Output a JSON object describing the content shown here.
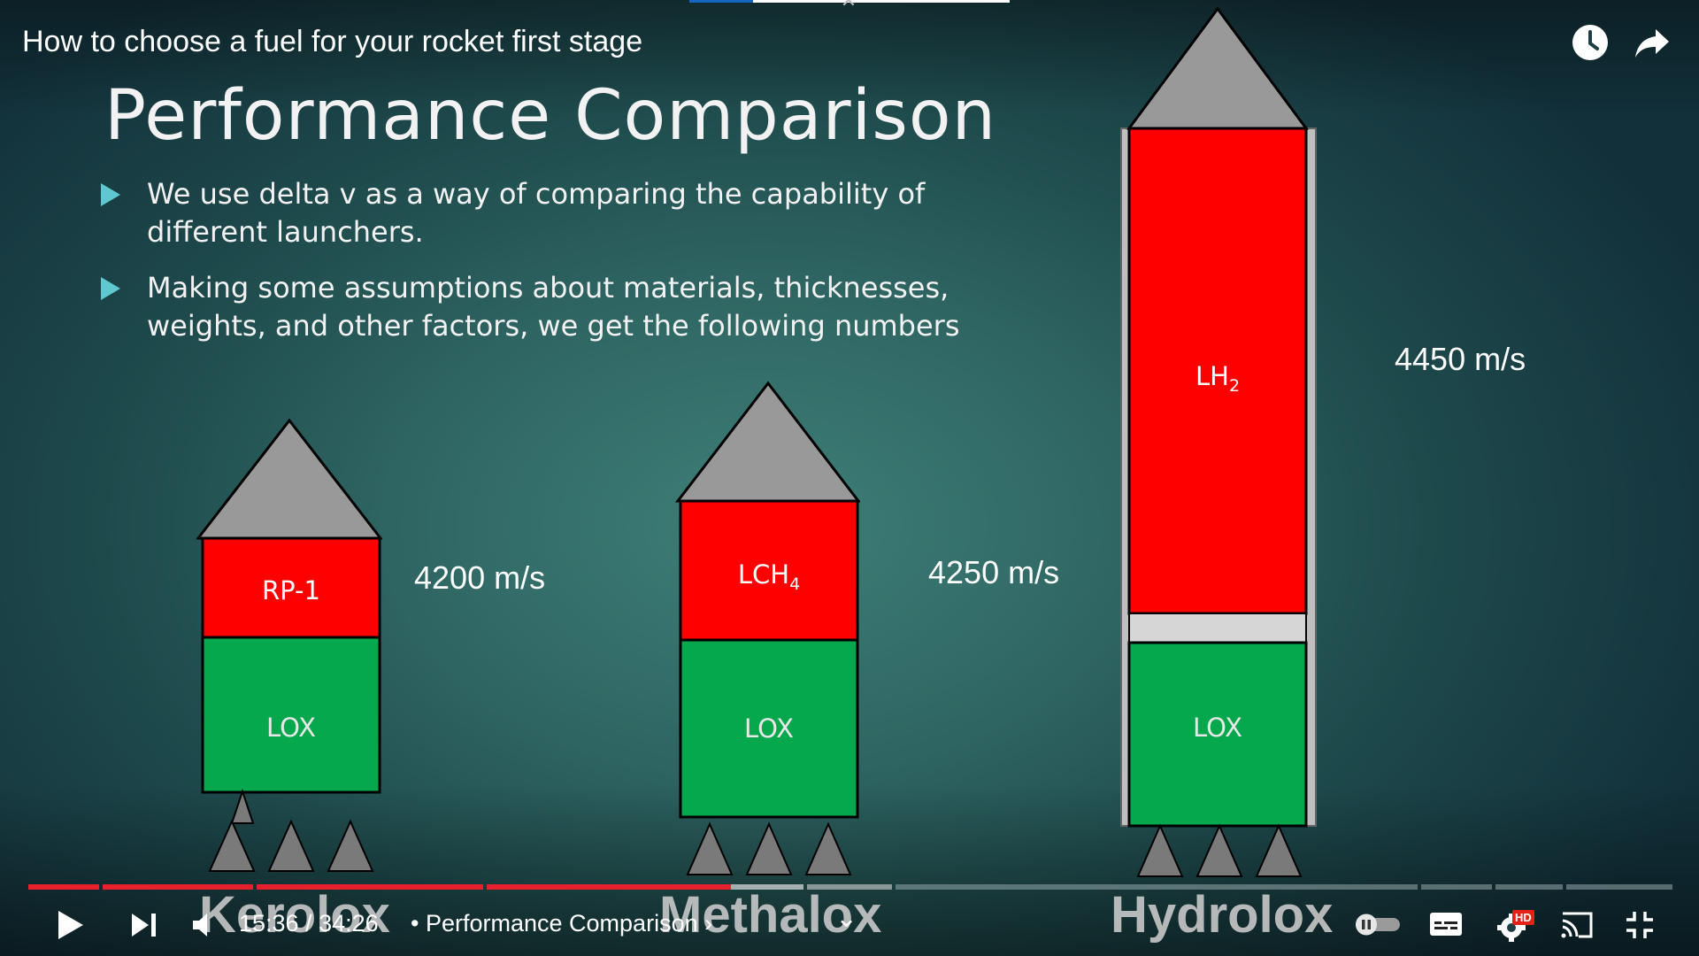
{
  "video": {
    "title": "How to choose a fuel for your rocket first stage"
  },
  "slide": {
    "title": "Performance Comparison",
    "bullets": [
      "We use delta v as a way of comparing the capability of different launchers.",
      "Making some assumptions about materials, thicknesses, weights, and other factors, we get the following numbers"
    ],
    "rockets": [
      {
        "name": "Kerolox",
        "fuel": "RP-1",
        "oxidizer": "LOX",
        "delta_v": "4200 m/s"
      },
      {
        "name": "Methalox",
        "fuel": "LCH",
        "fuel_sub": "4",
        "oxidizer": "LOX",
        "delta_v": "4250 m/s"
      },
      {
        "name": "Hydrolox",
        "fuel": "LH",
        "fuel_sub": "2",
        "oxidizer": "LOX",
        "delta_v": "4450 m/s"
      }
    ]
  },
  "player": {
    "time_current": "15:36",
    "time_total": "34:26",
    "time_separator": "/",
    "chapter": "Performance Comparison",
    "chapter_prefix": "•",
    "chapter_suffix": "›",
    "progress": 0.453,
    "hd_badge": "HD"
  },
  "colors": {
    "fuel_tank": "#ff0000",
    "lox_tank": "#00a550",
    "nose": "#999999",
    "progress_played": "#e8202e",
    "accent_blue": "#1565c0"
  },
  "icons": [
    "clock-icon",
    "share-icon",
    "play-icon",
    "next-icon",
    "volume-icon",
    "autoplay-toggle-icon",
    "subtitles-icon",
    "settings-icon",
    "cast-icon",
    "exit-fullscreen-icon",
    "close-icon",
    "chevron-down-icon"
  ]
}
